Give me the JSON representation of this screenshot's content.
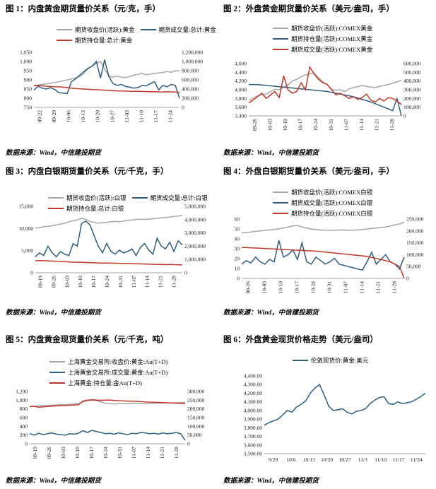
{
  "colors": {
    "gray": "#a6a6a6",
    "blue": "#2f5d7c",
    "red": "#c0392b"
  },
  "chart_data": [
    {
      "type": "line",
      "title": "图 1：内盘黄金期货量价关系（元/克，手）",
      "source": "数据来源：Wind，中信建投期货",
      "x_ticks": [
        "09-22",
        "09-29",
        "10-06",
        "10-13",
        "10-20",
        "10-27",
        "11-03",
        "11-10",
        "11-17",
        "11-24"
      ],
      "left_ticks": [
        "1,050",
        "1,000",
        "950",
        "900",
        "850",
        "800",
        "750"
      ],
      "right_ticks": [
        "1,200,000",
        "1,000,000",
        "800,000",
        "600,000",
        "400,000",
        "200,000",
        "0"
      ],
      "ylim_left": [
        750,
        1050
      ],
      "ylim_right": [
        0,
        1200000
      ],
      "series": [
        {
          "name": "期货收盘价(活跃):黄金",
          "axis": "left",
          "color": "gray",
          "values": [
            870,
            872,
            876,
            878,
            882,
            885,
            890,
            895,
            900,
            905,
            910,
            918,
            935,
            960,
            975,
            990,
            1000,
            960,
            920,
            915,
            920,
            915,
            912,
            918,
            925,
            930,
            935,
            928,
            932,
            935,
            938,
            940,
            945,
            942,
            948,
            950
          ]
        },
        {
          "name": "期货成交量:总计:黄金",
          "axis": "right",
          "color": "blue",
          "values": [
            380000,
            460000,
            420000,
            400000,
            430000,
            390000,
            320000,
            310000,
            300000,
            560000,
            620000,
            700000,
            780000,
            850000,
            900000,
            1000000,
            640000,
            1040000,
            680000,
            520000,
            480000,
            500000,
            460000,
            440000,
            420000,
            430000,
            480000,
            470000,
            520000,
            560000,
            380000,
            480000,
            450000,
            500000,
            480000,
            200000
          ]
        },
        {
          "name": "期货持仓量:总计:黄金",
          "axis": "right",
          "color": "red",
          "values": [
            470000,
            480000,
            470000,
            460000,
            455000,
            450000,
            448000,
            440000,
            430000,
            420000,
            410000,
            405000,
            400000,
            395000,
            390000,
            385000,
            380000,
            375000,
            370000,
            365000,
            360000,
            358000,
            355000,
            352000,
            350000,
            350000,
            348000,
            345000,
            342000,
            340000,
            338000,
            335000,
            340000,
            338000,
            335000,
            330000
          ]
        }
      ]
    },
    {
      "type": "line",
      "title": "图 2：外盘黄金期货量价关系（美元/盎司，手）",
      "source": "数据来源：Wind，中信建投期货",
      "x_ticks": [
        "09-26",
        "10-03",
        "10-10",
        "10-17",
        "10-24",
        "10-31",
        "11-07",
        "11-14",
        "11-21",
        "11-28"
      ],
      "left_ticks": [
        "4,600",
        "4,400",
        "4,200",
        "4,000",
        "3,800",
        "3,600",
        "3,400"
      ],
      "right_ticks": [
        "600,000",
        "500,000",
        "400,000",
        "300,000",
        "200,000",
        "100,000",
        "0"
      ],
      "ylim_left": [
        3400,
        4600
      ],
      "ylim_right": [
        0,
        600000
      ],
      "series": [
        {
          "name": "期货收盘价(活跃):COMEX黄金",
          "axis": "left",
          "color": "gray",
          "values": [
            3760,
            3800,
            3860,
            3880,
            3900,
            3960,
            4010,
            4000,
            4060,
            4110,
            4200,
            4240,
            4300,
            4340,
            4370,
            4380,
            4280,
            4180,
            4120,
            4010,
            3990,
            4000,
            3960,
            4020,
            4050,
            4070,
            4100,
            4080,
            4060,
            4050,
            4080,
            4100,
            4120,
            4150,
            4180,
            4220
          ]
        },
        {
          "name": "期货持仓量(活跃):COMEX黄金",
          "axis": "right",
          "color": "blue",
          "values": [
            360000,
            360000,
            358000,
            355000,
            350000,
            345000,
            340000,
            335000,
            330000,
            325000,
            320000,
            315000,
            310000,
            305000,
            300000,
            295000,
            290000,
            285000,
            280000,
            270000,
            260000,
            250000,
            240000,
            230000,
            220000,
            205000,
            190000,
            175000,
            160000,
            140000,
            120000,
            100000,
            80000,
            60000,
            200000,
            0
          ]
        },
        {
          "name": "期货成交量(活跃):COMEX黄金",
          "axis": "right",
          "color": "red",
          "values": [
            150000,
            180000,
            220000,
            260000,
            200000,
            240000,
            280000,
            210000,
            460000,
            300000,
            260000,
            280000,
            380000,
            300000,
            560000,
            480000,
            420000,
            380000,
            360000,
            300000,
            240000,
            260000,
            230000,
            200000,
            220000,
            190000,
            210000,
            250000,
            180000,
            160000,
            200000,
            170000,
            210000,
            200000,
            170000,
            130000
          ]
        }
      ]
    },
    {
      "type": "line",
      "title": "图 3：内盘白银期货量价关系（元/千克，手）",
      "source": "数据来源：Wind，中信建投期货",
      "x_ticks": [
        "09-19",
        "09-26",
        "10-03",
        "10-10",
        "10-17",
        "10-24",
        "10-31",
        "11-07",
        "11-14",
        "11-21",
        "11-28"
      ],
      "left_ticks": [
        "15,000",
        "10,000",
        "5,000",
        "0"
      ],
      "right_ticks": [
        "5,000,000",
        "4,000,000",
        "3,000,000",
        "2,000,000",
        "1,000,000",
        "0"
      ],
      "ylim_left": [
        0,
        15000
      ],
      "ylim_right": [
        0,
        5000000
      ],
      "series": [
        {
          "name": "期货收盘价(活跃):白银",
          "axis": "left",
          "color": "gray",
          "values": [
            10100,
            10200,
            10400,
            10500,
            10600,
            10800,
            11000,
            11200,
            11500,
            11800,
            11900,
            12300,
            12100,
            11600,
            11400,
            11200,
            11300,
            11400,
            11500,
            11600,
            11500,
            11700,
            11800,
            11900,
            12000,
            12100,
            12050,
            12100,
            12200,
            12300,
            12400,
            12500,
            12600,
            12700,
            12800,
            13000
          ]
        },
        {
          "name": "期货成交量:总计:白银",
          "axis": "right",
          "color": "blue",
          "values": [
            1200000,
            1500000,
            1300000,
            2000000,
            1500000,
            1200000,
            1600000,
            1400000,
            1300000,
            2200000,
            2000000,
            3700000,
            3900000,
            3600000,
            2800000,
            2000000,
            1500000,
            2200000,
            1600000,
            1400000,
            1700000,
            1500000,
            1600000,
            1800000,
            1300000,
            1900000,
            2200000,
            1700000,
            1400000,
            2600000,
            2000000,
            1800000,
            2300000,
            1600000,
            2400000,
            2100000
          ]
        },
        {
          "name": "期货持仓量:总计:白银",
          "axis": "right",
          "color": "red",
          "values": [
            900000,
            920000,
            910000,
            900000,
            880000,
            860000,
            850000,
            840000,
            820000,
            800000,
            790000,
            780000,
            770000,
            760000,
            750000,
            740000,
            735000,
            730000,
            725000,
            720000,
            715000,
            710000,
            700000,
            690000,
            680000,
            670000,
            660000,
            650000,
            640000,
            630000,
            620000,
            610000,
            620000,
            610000,
            600000,
            590000
          ]
        }
      ]
    },
    {
      "type": "line",
      "title": "图 4：外盘白银期货量价关系（美元/盎司，手）",
      "source": "数据来源：Wind，中信建投期货",
      "x_ticks": [
        "09-26",
        "10-03",
        "10-10",
        "10-17",
        "10-24",
        "10-31",
        "11-07",
        "11-14",
        "11-21",
        "11-28"
      ],
      "left_ticks": [
        "60",
        "50",
        "40",
        "30",
        "20",
        "10",
        "0"
      ],
      "right_ticks": [
        "250,000",
        "200,000",
        "150,000",
        "100,000",
        "50,000",
        "0"
      ],
      "ylim_left": [
        0,
        60
      ],
      "ylim_right": [
        0,
        250000
      ],
      "series": [
        {
          "name": "期货收盘价(活跃):COMEX白银",
          "axis": "left",
          "color": "gray",
          "values": [
            46,
            46.5,
            47,
            47.5,
            48,
            48.5,
            49,
            49.5,
            50,
            51,
            52,
            53,
            53.5,
            52,
            51,
            50,
            49.5,
            49,
            48.8,
            48.5,
            48.7,
            48.9,
            49,
            48.5,
            48.8,
            49,
            49.5,
            50,
            50.5,
            51,
            51.5,
            52,
            53,
            54,
            55,
            57
          ]
        },
        {
          "name": "期货成交量(活跃):COMEX白银",
          "axis": "right",
          "color": "blue",
          "values": [
            60000,
            75000,
            65000,
            90000,
            70000,
            60000,
            80000,
            70000,
            160000,
            90000,
            100000,
            120000,
            80000,
            150000,
            70000,
            60000,
            90000,
            75000,
            60000,
            70000,
            85000,
            60000,
            55000,
            50000,
            45000,
            40000,
            35000,
            70000,
            110000,
            60000,
            80000,
            100000,
            70000,
            60000,
            40000,
            90000
          ]
        },
        {
          "name": "期货持仓量(活跃):COMEX白银",
          "axis": "right",
          "color": "red",
          "values": [
            130000,
            130000,
            129000,
            128000,
            127000,
            126000,
            125000,
            124000,
            123000,
            122000,
            121000,
            120000,
            119000,
            118000,
            117000,
            116000,
            115000,
            113000,
            111000,
            109000,
            107000,
            105000,
            103000,
            101000,
            99000,
            97000,
            95000,
            92000,
            88000,
            84000,
            80000,
            75000,
            70000,
            60000,
            50000,
            0
          ]
        }
      ]
    },
    {
      "type": "line",
      "title": "图 5：内盘黄金现货量价关系（元/千克，吨）",
      "source": "数据来源：Wind，中信建投期货",
      "x_ticks": [
        "09-19",
        "09-26",
        "10-03",
        "10-10",
        "10-17",
        "10-24",
        "10-31",
        "11-07",
        "11-14",
        "11-21",
        "11-28"
      ],
      "left_ticks": [
        "1,200",
        "1,000",
        "800",
        "600",
        "400",
        "200",
        "0"
      ],
      "right_ticks": [
        "300,000",
        "250,000",
        "200,000",
        "150,000",
        "100,000",
        "50,000",
        "0"
      ],
      "ylim_left": [
        0,
        1200
      ],
      "ylim_right": [
        0,
        300000
      ],
      "series": [
        {
          "name": "上海黄金交易所:收盘价:黄金:Au(T+D)",
          "axis": "left",
          "color": "gray",
          "values": [
            850,
            860,
            870,
            875,
            880,
            885,
            890,
            895,
            900,
            905,
            915,
            930,
            960,
            990,
            1000,
            990,
            960,
            930,
            920,
            915,
            918,
            920,
            922,
            925,
            928,
            930,
            925,
            928,
            930,
            932,
            935,
            938,
            936,
            940,
            945,
            950
          ]
        },
        {
          "name": "上海黄金交易所:成交量:黄金:Au(T+D)",
          "axis": "left",
          "color": "blue",
          "values": [
            230,
            200,
            240,
            210,
            230,
            250,
            220,
            210,
            200,
            230,
            220,
            240,
            300,
            260,
            310,
            280,
            260,
            230,
            240,
            220,
            250,
            230,
            210,
            240,
            230,
            260,
            250,
            230,
            240,
            220,
            250,
            230,
            240,
            260,
            230,
            80
          ]
        },
        {
          "name": "上海黄金:持仓量:金Au(T+D)",
          "axis": "right",
          "color": "red",
          "values": [
            215000,
            215000,
            210000,
            212000,
            214000,
            216000,
            218000,
            219000,
            220000,
            221000,
            222000,
            224000,
            245000,
            250000,
            252000,
            251000,
            249000,
            250000,
            250000,
            248000,
            247000,
            246000,
            245000,
            244000,
            243000,
            242000,
            240000,
            239000,
            238000,
            237000,
            236000,
            235000,
            234000,
            233000,
            232000,
            231000
          ]
        }
      ]
    },
    {
      "type": "line",
      "title": "图 6：外盘黄金现货价格走势（美元/盎司）",
      "source": "数据来源：Wind，中信建投期货",
      "x_ticks": [
        "9/29",
        "10/6",
        "10/13",
        "10/20",
        "10/27",
        "11/3",
        "11/10",
        "11/17",
        "11/24"
      ],
      "left_ticks": [
        "4,400.00",
        "4,300.00",
        "4,200.00",
        "4,100.00",
        "4,000.00",
        "3,900.00",
        "3,800.00",
        "3,700.00",
        "3,600.00",
        "3,500.00"
      ],
      "ylim_left": [
        3500,
        4400
      ],
      "series": [
        {
          "name": "伦敦现货价:黄金:美元",
          "axis": "left",
          "color": "blue",
          "values": [
            3830,
            3860,
            3880,
            3900,
            3950,
            4000,
            3980,
            4040,
            4070,
            4110,
            4200,
            4260,
            4300,
            4180,
            4050,
            4000,
            4010,
            4020,
            3980,
            3960,
            3990,
            4000,
            4020,
            4080,
            4120,
            4150,
            4160,
            4080,
            4070,
            4100,
            4080,
            4090,
            4100,
            4130,
            4160,
            4200
          ]
        }
      ]
    }
  ]
}
